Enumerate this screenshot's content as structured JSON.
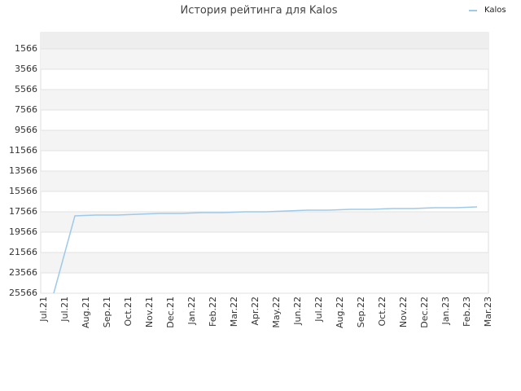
{
  "chart_data": {
    "type": "line",
    "title": "История рейтинга для Kalos",
    "categories": [
      "Jul.21",
      "Jul.21",
      "Aug.21",
      "Sep.21",
      "Oct.21",
      "Nov.21",
      "Dec.21",
      "Jan.22",
      "Feb.22",
      "Mar.22",
      "Apr.22",
      "May.22",
      "Jun.22",
      "Jul.22",
      "Aug.22",
      "Sep.22",
      "Oct.22",
      "Nov.22",
      "Dec.22",
      "Jan.23",
      "Feb.23",
      "Mar.23"
    ],
    "series": [
      {
        "name": "Kalos",
        "color": "#9ecae9",
        "values": [
          null,
          25566,
          17966,
          17886,
          17886,
          17806,
          17726,
          17726,
          17646,
          17646,
          17566,
          17566,
          17486,
          17406,
          17406,
          17326,
          17326,
          17246,
          17246,
          17166,
          17166,
          17086
        ]
      }
    ],
    "ylim": [
      25566,
      -34
    ],
    "yticks": [
      1566,
      3566,
      5566,
      7566,
      9566,
      11566,
      13566,
      15566,
      17566,
      19566,
      21566,
      23566,
      25566
    ],
    "grid": true,
    "legend": "top-right"
  }
}
